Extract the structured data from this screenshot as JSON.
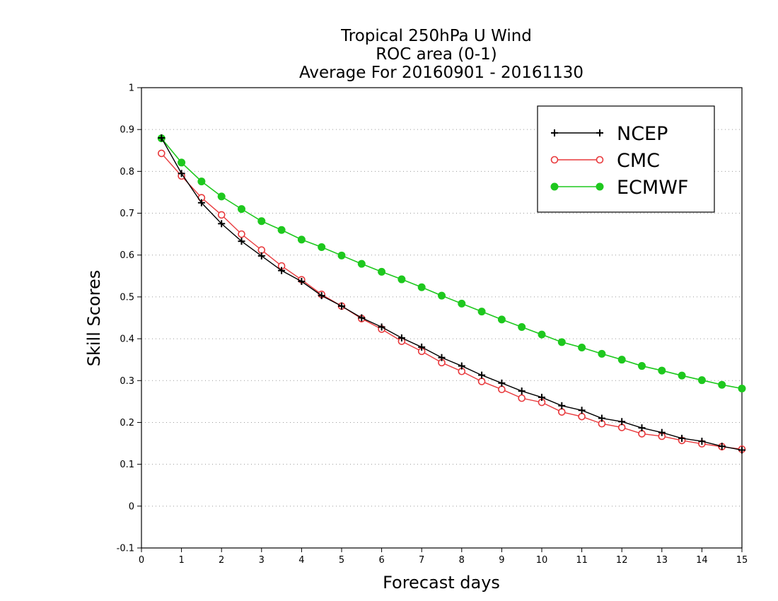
{
  "chart_data": {
    "type": "line",
    "title_lines": [
      "Tropical 250hPa U Wind",
      "ROC area (0-1)",
      "Average For 20160901 - 20161130"
    ],
    "xlabel": "Forecast days",
    "ylabel": "Skill Scores",
    "xlim": [
      0,
      15
    ],
    "ylim": [
      -0.1,
      1
    ],
    "x_ticks": [
      0,
      1,
      2,
      3,
      4,
      5,
      6,
      7,
      8,
      9,
      10,
      11,
      12,
      13,
      14,
      15
    ],
    "x_tick_labels": [
      "0",
      "1",
      "2",
      "3",
      "4",
      "5",
      "6",
      "7",
      "8",
      "9",
      "10",
      "11",
      "12",
      "13",
      "14",
      "15"
    ],
    "y_ticks": [
      -0.1,
      0,
      0.1,
      0.2,
      0.3,
      0.4,
      0.5,
      0.6,
      0.7,
      0.8,
      0.9,
      1
    ],
    "y_tick_labels": [
      "-0.1",
      "0",
      "0.1",
      "0.2",
      "0.3",
      "0.4",
      "0.5",
      "0.6",
      "0.7",
      "0.8",
      "0.9",
      "1"
    ],
    "grid": "horizontal dotted",
    "legend_position": "top-right",
    "x": [
      0.5,
      1,
      1.5,
      2,
      2.5,
      3,
      3.5,
      4,
      4.5,
      5,
      5.5,
      6,
      6.5,
      7,
      7.5,
      8,
      8.5,
      9,
      9.5,
      10,
      10.5,
      11,
      11.5,
      12,
      12.5,
      13,
      13.5,
      14,
      14.5,
      15
    ],
    "series": [
      {
        "name": "NCEP",
        "color": "#000000",
        "marker": "plus",
        "values": [
          0.88,
          0.795,
          0.725,
          0.675,
          0.633,
          0.598,
          0.563,
          0.537,
          0.503,
          0.478,
          0.45,
          0.428,
          0.402,
          0.38,
          0.355,
          0.335,
          0.313,
          0.294,
          0.275,
          0.26,
          0.24,
          0.229,
          0.21,
          0.202,
          0.187,
          0.176,
          0.162,
          0.155,
          0.143,
          0.134
        ]
      },
      {
        "name": "CMC",
        "color": "#e8393c",
        "marker": "open-circle",
        "values": [
          0.843,
          0.789,
          0.737,
          0.696,
          0.65,
          0.612,
          0.574,
          0.541,
          0.506,
          0.478,
          0.448,
          0.423,
          0.394,
          0.37,
          0.343,
          0.322,
          0.298,
          0.279,
          0.258,
          0.248,
          0.225,
          0.214,
          0.197,
          0.188,
          0.173,
          0.167,
          0.157,
          0.149,
          0.142,
          0.136
        ]
      },
      {
        "name": "ECMWF",
        "color": "#1ec81e",
        "marker": "filled-circle",
        "values": [
          0.879,
          0.821,
          0.776,
          0.74,
          0.71,
          0.681,
          0.66,
          0.637,
          0.619,
          0.599,
          0.579,
          0.56,
          0.542,
          0.523,
          0.503,
          0.484,
          0.465,
          0.446,
          0.428,
          0.41,
          0.392,
          0.379,
          0.364,
          0.35,
          0.335,
          0.324,
          0.312,
          0.301,
          0.29,
          0.281
        ]
      }
    ]
  }
}
